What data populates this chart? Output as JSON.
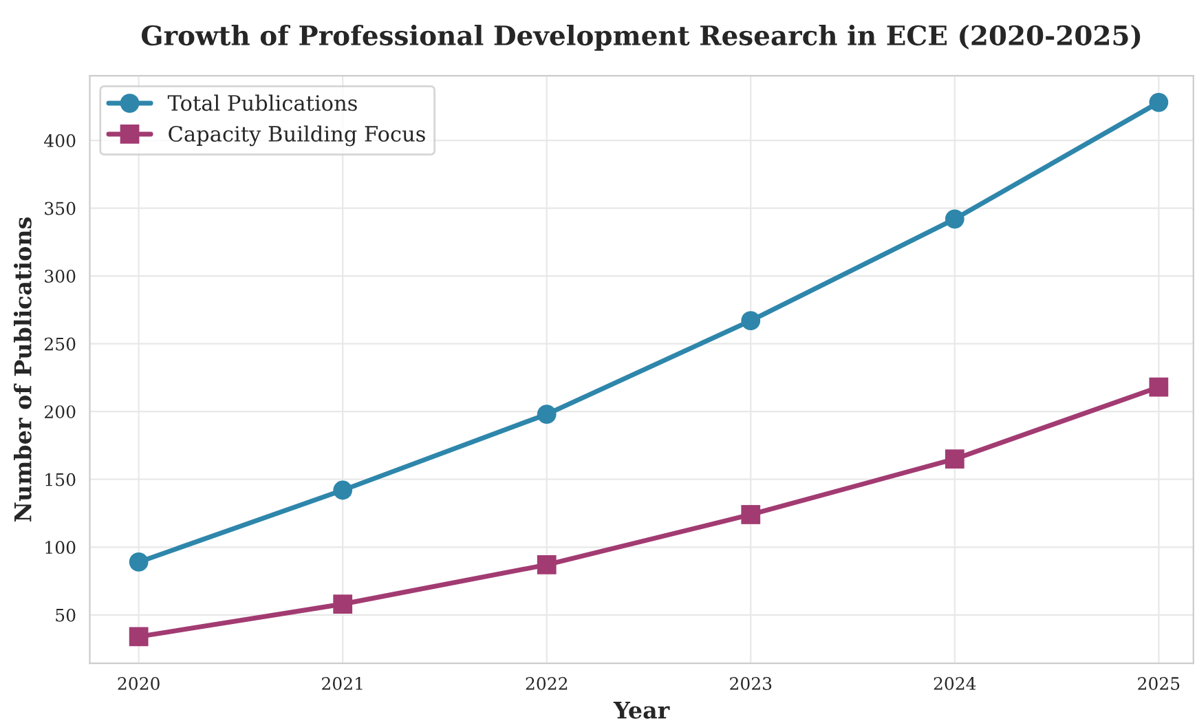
{
  "chart_data": {
    "type": "line",
    "title": "Growth of Professional Development Research in ECE (2020-2025)",
    "xlabel": "Year",
    "ylabel": "Number of Publications",
    "x": [
      2020,
      2021,
      2022,
      2023,
      2024,
      2025
    ],
    "series": [
      {
        "name": "Total Publications",
        "color": "#2e86ab",
        "marker": "circle",
        "values": [
          89,
          142,
          198,
          267,
          342,
          428
        ]
      },
      {
        "name": "Capacity Building Focus",
        "color": "#a23b72",
        "marker": "square",
        "values": [
          34,
          58,
          87,
          124,
          165,
          218
        ]
      }
    ],
    "xlim": [
      2019.76,
      2025.17
    ],
    "xticks": [
      2020,
      2021,
      2022,
      2023,
      2024,
      2025
    ],
    "ylim": [
      14.3,
      447.7
    ],
    "yticks": [
      50,
      100,
      150,
      200,
      250,
      300,
      350,
      400
    ],
    "grid": true,
    "legend": "top left",
    "line_style": "solid"
  }
}
